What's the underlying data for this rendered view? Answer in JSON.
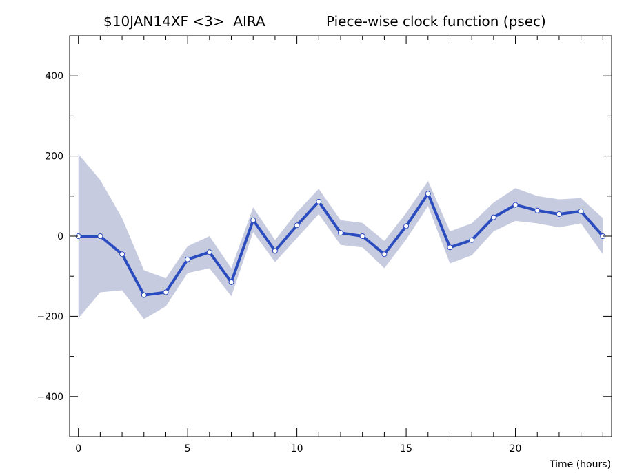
{
  "chart_data": {
    "type": "line",
    "title_left": "$10JAN14XF <3>  AIRA",
    "title_right": "Piece-wise clock function (psec)",
    "xlabel": "Time (hours)",
    "ylabel": "",
    "xlim": [
      -0.4,
      24.4
    ],
    "ylim": [
      -500,
      500
    ],
    "x_ticks": [
      0,
      5,
      10,
      15,
      20
    ],
    "y_ticks": [
      -400,
      -200,
      0,
      200,
      400
    ],
    "grid": false,
    "colors": {
      "line": "#2b4cbe",
      "band": "#c7cbdf",
      "marker_fill": "#ffffff",
      "frame": "#000000"
    },
    "series": [
      {
        "x": [
          0,
          1,
          2,
          3,
          4,
          5,
          6,
          7,
          8,
          9,
          10,
          11,
          12,
          13,
          14,
          15,
          16,
          17,
          18,
          19,
          20,
          21,
          22,
          23,
          24
        ],
        "values": [
          0,
          0,
          -45,
          -147,
          -140,
          -58,
          -40,
          -115,
          40,
          -37,
          27,
          86,
          8,
          0,
          -45,
          25,
          106,
          -28,
          -10,
          47,
          78,
          64,
          55,
          62,
          0
        ],
        "band_upper": [
          205,
          140,
          45,
          -85,
          -105,
          -25,
          0,
          -80,
          72,
          -10,
          60,
          118,
          40,
          33,
          -12,
          58,
          138,
          12,
          32,
          84,
          120,
          100,
          92,
          95,
          45
        ],
        "band_lower": [
          -205,
          -140,
          -135,
          -207,
          -175,
          -92,
          -80,
          -150,
          10,
          -65,
          -5,
          55,
          -22,
          -28,
          -80,
          -8,
          75,
          -68,
          -48,
          12,
          38,
          32,
          22,
          32,
          -45
        ]
      }
    ]
  }
}
